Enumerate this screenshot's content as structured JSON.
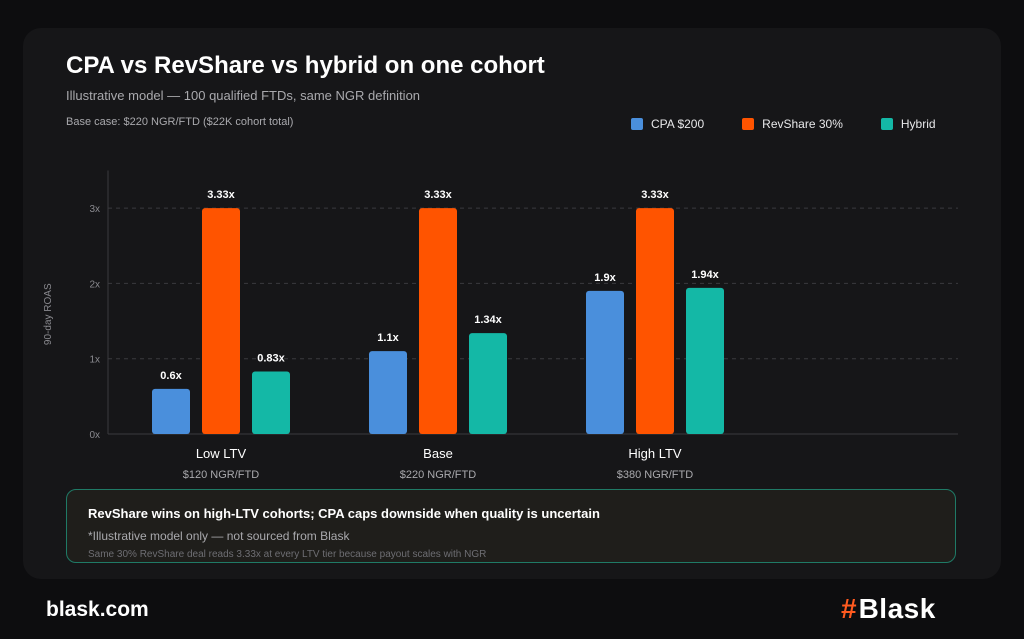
{
  "header": {
    "title": "CPA vs RevShare vs hybrid on one cohort",
    "subtitle": "Illustrative model — 100 qualified FTDs, same NGR definition",
    "base_case": "Base case: $220 NGR/FTD ($22K cohort total)"
  },
  "chart_data": {
    "type": "bar",
    "ylabel": "90-day ROAS",
    "ylim": [
      0,
      3.5
    ],
    "yticks": [
      "0x",
      "1x",
      "2x",
      "3x"
    ],
    "grid": true,
    "legend_position": "top-right",
    "categories": [
      "Low LTV",
      "Base",
      "High LTV"
    ],
    "category_sublabels": [
      "$120 NGR/FTD",
      "$220 NGR/FTD",
      "$380 NGR/FTD"
    ],
    "series": [
      {
        "name": "CPA $200",
        "color": "#4a8fdc",
        "values": [
          0.6,
          1.1,
          1.9
        ],
        "labels": [
          "0.6x",
          "1.1x",
          "1.9x"
        ]
      },
      {
        "name": "RevShare 30%",
        "color": "#ff5400",
        "values": [
          3.33,
          3.33,
          3.33
        ],
        "labels": [
          "3.33x",
          "3.33x",
          "3.33x"
        ]
      },
      {
        "name": "Hybrid",
        "color": "#14b8a6",
        "values": [
          0.83,
          1.34,
          1.94
        ],
        "labels": [
          "0.83x",
          "1.34x",
          "1.94x"
        ]
      }
    ]
  },
  "callout": {
    "headline": "RevShare wins on high-LTV cohorts; CPA caps downside when quality is uncertain",
    "note": "*Illustrative model only — not sourced from Blask",
    "footnote": "Same 30% RevShare deal reads 3.33x at every LTV tier because payout scales with NGR"
  },
  "footer": {
    "url": "blask.com",
    "brand_mark": "#",
    "brand_name": "Blask"
  }
}
